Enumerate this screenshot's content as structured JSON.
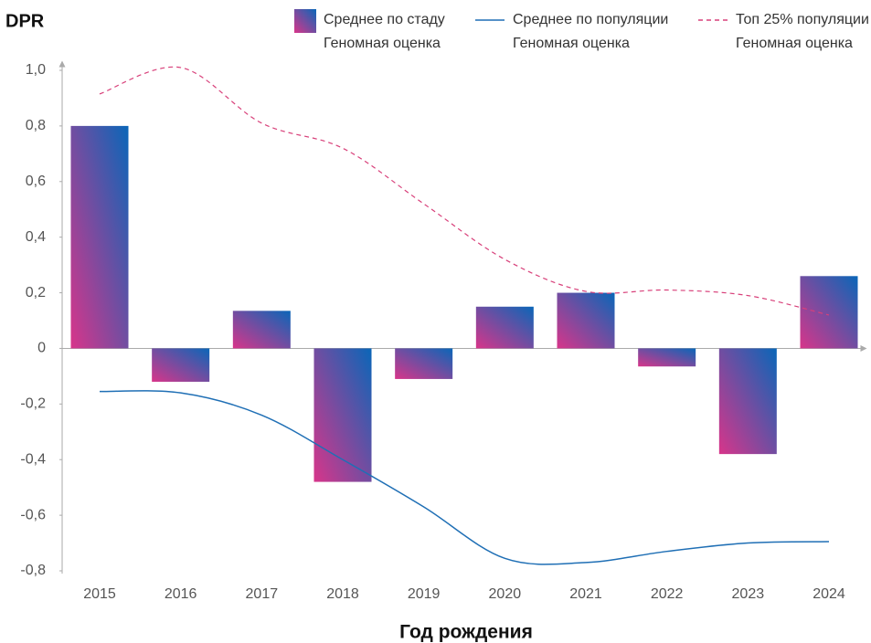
{
  "chart_data": {
    "type": "bar",
    "y_label": "DPR",
    "x_label": "Год рождения",
    "categories": [
      "2015",
      "2016",
      "2017",
      "2018",
      "2019",
      "2020",
      "2021",
      "2022",
      "2023",
      "2024"
    ],
    "series": [
      {
        "name": "Среднее по стаду\nГеномная оценка",
        "type": "bar",
        "color": "#0a66b8",
        "gradient_from": "#d8358a",
        "values": [
          0.8,
          -0.12,
          0.135,
          -0.48,
          -0.11,
          0.15,
          0.2,
          -0.065,
          -0.38,
          0.26
        ]
      },
      {
        "name": "Среднее по популяции\nГеномная оценка",
        "type": "line",
        "color": "#1f6fb5",
        "dashed": false,
        "values": [
          -0.155,
          -0.16,
          -0.24,
          -0.4,
          -0.57,
          -0.755,
          -0.77,
          -0.73,
          -0.7,
          -0.695
        ]
      },
      {
        "name": "Топ 25% популяции\nГеномная оценка",
        "type": "line",
        "color": "#d8407a",
        "dashed": true,
        "values": [
          0.915,
          1.01,
          0.81,
          0.72,
          0.52,
          0.32,
          0.205,
          0.21,
          0.19,
          0.12
        ]
      }
    ],
    "ylim": [
      -0.8,
      1.0
    ],
    "yticks": [
      {
        "value": 1.0,
        "label": "1,0"
      },
      {
        "value": 0.8,
        "label": "0,8"
      },
      {
        "value": 0.6,
        "label": "0,6"
      },
      {
        "value": 0.4,
        "label": "0,4"
      },
      {
        "value": 0.2,
        "label": "0,2"
      },
      0,
      {
        "value": -0.2,
        "label": "-0,2"
      },
      {
        "value": -0.4,
        "label": "-0,4"
      },
      {
        "value": -0.6,
        "label": "-0,6"
      },
      {
        "value": -0.8,
        "label": "-0,8"
      }
    ],
    "grid": false
  }
}
